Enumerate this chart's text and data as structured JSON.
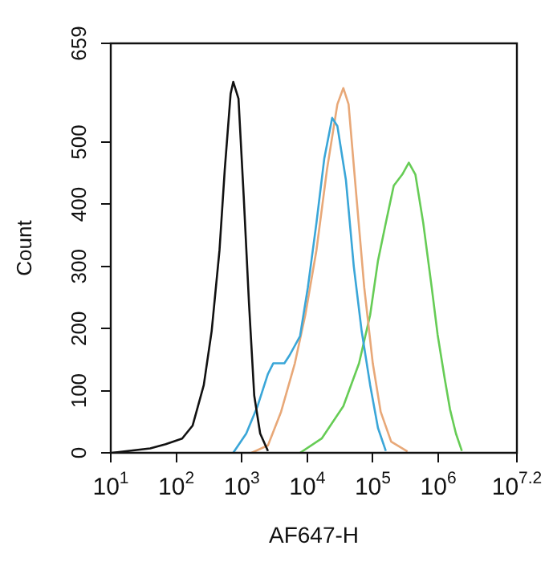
{
  "chart_data": {
    "type": "line",
    "xlabel": "AF647-H",
    "ylabel": "Count",
    "log": "x",
    "xlim": [
      10,
      15848932
    ],
    "xticks": [
      {
        "value": 10,
        "label": "10$^{1}$"
      },
      {
        "value": 100,
        "label": "10$^{2}$"
      },
      {
        "value": 1000,
        "label": "10$^{3}$"
      },
      {
        "value": 10000,
        "label": "10$^{4}$"
      },
      {
        "value": 100000,
        "label": "10$^{5}$"
      },
      {
        "value": 1000000,
        "label": "10$^{6}$"
      },
      {
        "value": 15848932,
        "label": "10$^{7.2}$"
      }
    ],
    "ylim": [
      0,
      659
    ],
    "yticks": [
      0,
      100,
      200,
      300,
      400,
      500,
      659
    ],
    "grid": false,
    "legend": false,
    "marker": "none",
    "line_style": "solid",
    "series": [
      {
        "color": "#111111",
        "x": [
          10.5,
          40,
          69,
          123,
          178,
          263,
          347,
          457,
          550,
          676,
          741,
          891,
          1070,
          1290,
          1550,
          1910,
          2510
        ],
        "values": [
          0,
          7,
          14,
          23,
          44,
          109,
          196,
          326,
          456,
          578,
          597,
          570,
          413,
          240,
          92,
          31,
          3
        ]
      },
      {
        "color": "#3aa6d8",
        "x": [
          740,
          1170,
          1740,
          2510,
          3020,
          4470,
          5370,
          7760,
          10200,
          13800,
          18200,
          24000,
          28800,
          38900,
          51300,
          67600,
          91200,
          120000,
          158000
        ],
        "values": [
          0,
          31,
          75,
          127,
          144,
          144,
          157,
          188,
          266,
          370,
          474,
          539,
          526,
          439,
          300,
          196,
          109,
          40,
          3
        ]
      },
      {
        "color": "#e8a878",
        "x": [
          1410,
          2510,
          3980,
          6460,
          9330,
          13800,
          20000,
          28800,
          35500,
          42700,
          56200,
          74100,
          100000,
          132000,
          191000,
          339000
        ],
        "values": [
          0,
          12,
          66,
          144,
          222,
          326,
          456,
          561,
          587,
          561,
          413,
          266,
          144,
          66,
          18,
          2
        ]
      },
      {
        "color": "#66cc55",
        "x": [
          7760,
          16600,
          35500,
          61700,
          91200,
          120000,
          158000,
          209000,
          282000,
          355000,
          447000,
          589000,
          794000,
          977000,
          1260000,
          1510000,
          1860000,
          2290000
        ],
        "values": [
          0,
          23,
          75,
          144,
          222,
          309,
          370,
          430,
          448,
          467,
          448,
          370,
          266,
          190,
          118,
          70,
          31,
          3
        ]
      }
    ]
  }
}
